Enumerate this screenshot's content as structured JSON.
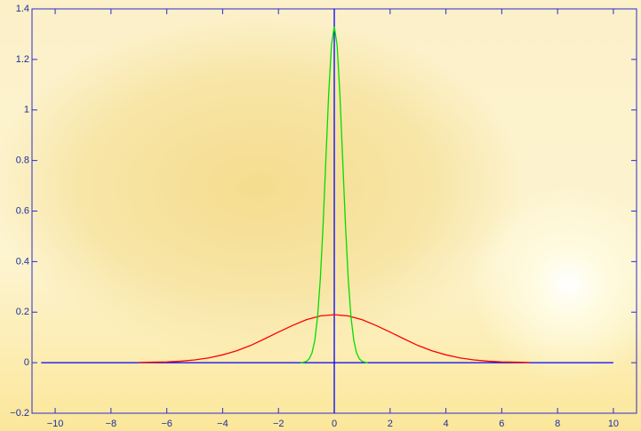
{
  "chart_data": {
    "type": "line",
    "xlim": [
      -10.83,
      10.83
    ],
    "ylim": [
      -0.2,
      1.4
    ],
    "xticks": [
      {
        "value": -10,
        "label": "−10"
      },
      {
        "value": -8,
        "label": "−8"
      },
      {
        "value": -6,
        "label": "−6"
      },
      {
        "value": -4,
        "label": "−4"
      },
      {
        "value": -2,
        "label": "−2"
      },
      0,
      2,
      4,
      6,
      8,
      10
    ],
    "yticks": [
      {
        "value": -0.2,
        "label": "−0.2"
      },
      0,
      0.2,
      0.4,
      0.6,
      0.8,
      1,
      1.2,
      1.4
    ],
    "series": [
      {
        "color": "#0000ff",
        "x": [
          -10.5,
          10
        ],
        "values": [
          0,
          0
        ]
      },
      {
        "color": "#0000ff",
        "x": [
          0,
          0
        ],
        "values": [
          -0.2,
          1.4
        ]
      },
      {
        "color": "#ff0000",
        "x": [
          -7,
          -6.5,
          -6,
          -5.5,
          -5,
          -4.5,
          -4,
          -3.5,
          -3,
          -2.5,
          -2,
          -1.5,
          -1,
          -0.5,
          0,
          0.5,
          1,
          1.5,
          2,
          2.5,
          3,
          3.5,
          4,
          4.5,
          5,
          5.5,
          6,
          6.5,
          7
        ],
        "values": [
          0.001,
          0.002,
          0.003,
          0.006,
          0.011,
          0.019,
          0.031,
          0.047,
          0.068,
          0.094,
          0.121,
          0.147,
          0.17,
          0.185,
          0.19,
          0.185,
          0.17,
          0.147,
          0.121,
          0.094,
          0.068,
          0.047,
          0.031,
          0.019,
          0.011,
          0.006,
          0.003,
          0.002,
          0.001
        ]
      },
      {
        "color": "#00dd00",
        "x": [
          -1.2,
          -1.1,
          -1,
          -0.9,
          -0.8,
          -0.7,
          -0.6,
          -0.5,
          -0.4,
          -0.3,
          -0.2,
          -0.1,
          0,
          0.1,
          0.2,
          0.3,
          0.4,
          0.5,
          0.6,
          0.7,
          0.8,
          0.9,
          1,
          1.1,
          1.2
        ],
        "values": [
          0,
          0.002,
          0.005,
          0.015,
          0.038,
          0.087,
          0.18,
          0.331,
          0.547,
          0.807,
          1.065,
          1.258,
          1.33,
          1.258,
          1.065,
          0.807,
          0.547,
          0.331,
          0.18,
          0.087,
          0.038,
          0.015,
          0.005,
          0.002,
          0
        ]
      }
    ]
  }
}
